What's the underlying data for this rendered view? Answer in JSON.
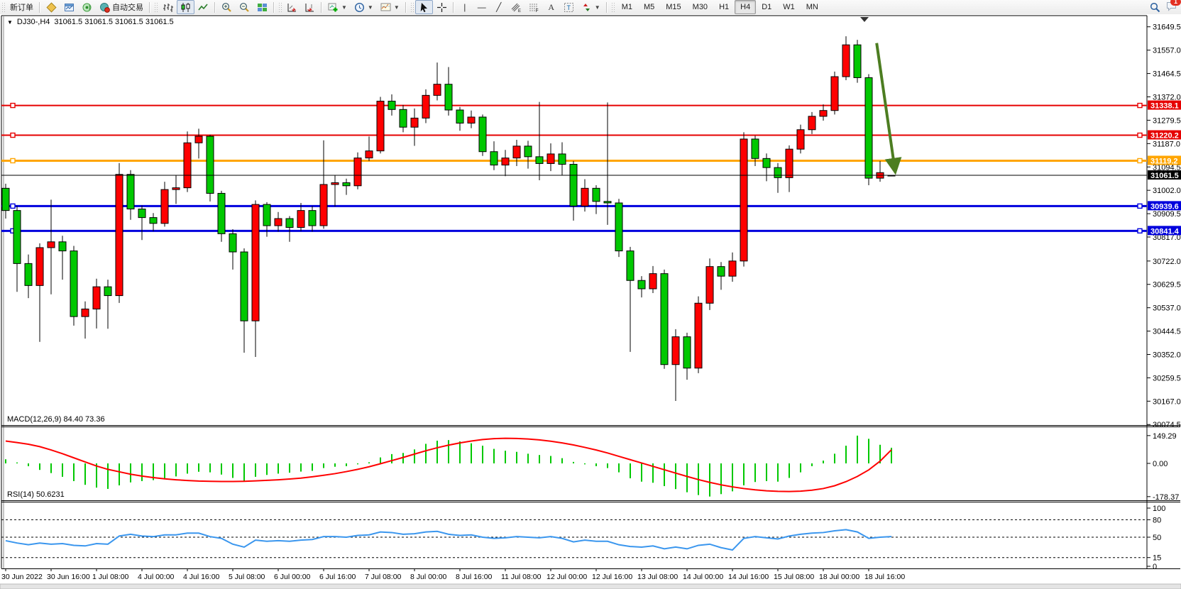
{
  "toolbar": {
    "new_order_label": "新订单",
    "auto_trading_label": "自动交易",
    "timeframes": [
      "M1",
      "M5",
      "M15",
      "M30",
      "H1",
      "H4",
      "D1",
      "W1",
      "MN"
    ],
    "active_timeframe": "H4",
    "notification_count": "1",
    "icons": [
      "charts-stack-icon",
      "chart-window-icon",
      "signal-icon",
      "autotrade-icon",
      "bar-chart-icon",
      "candlestick-icon",
      "line-chart-icon",
      "zoom-in-icon",
      "zoom-out-icon",
      "tile-windows-icon",
      "scroll-to-end-icon",
      "chart-shift-icon",
      "add-indicator-icon",
      "period-clock-icon",
      "template-icon",
      "cursor-icon",
      "crosshair-icon",
      "vertical-line-icon",
      "horizontal-line-icon",
      "trendline-icon",
      "channel-icon",
      "fibonacci-icon",
      "text-icon",
      "label-icon",
      "arrow-shapes-icon",
      "search-icon",
      "chat-icon"
    ]
  },
  "chart_data": {
    "type": "candlestick",
    "info_symbol": "DJ30-,H4",
    "info_ohlc": "31061.5 31061.5 31061.5 31061.5",
    "expander": "▼",
    "price_axis_ticks": [
      31649.5,
      31557.0,
      31464.5,
      31372.0,
      31279.5,
      31187.0,
      31094.5,
      31002.0,
      30909.5,
      30817.0,
      30722.0,
      30629.5,
      30537.0,
      30444.5,
      30352.0,
      30259.5,
      30167.0,
      30074.5
    ],
    "time_labels": [
      "30 Jun 2022",
      "30 Jun 16:00",
      "1 Jul 08:00",
      "4 Jul 00:00",
      "4 Jul 16:00",
      "5 Jul 08:00",
      "6 Jul 00:00",
      "6 Jul 16:00",
      "7 Jul 08:00",
      "8 Jul 00:00",
      "8 Jul 16:00",
      "11 Jul 08:00",
      "12 Jul 00:00",
      "12 Jul 16:00",
      "13 Jul 08:00",
      "14 Jul 00:00",
      "14 Jul 16:00",
      "15 Jul 08:00",
      "18 Jul 00:00",
      "18 Jul 16:00"
    ],
    "candles": [
      [
        31010,
        31028,
        30890,
        30922
      ],
      [
        30922,
        30940,
        30600,
        30712
      ],
      [
        30712,
        30748,
        30575,
        30625
      ],
      [
        30625,
        30792,
        30402,
        30775
      ],
      [
        30775,
        30965,
        30590,
        30798
      ],
      [
        30798,
        30822,
        30648,
        30762
      ],
      [
        30762,
        30782,
        30466,
        30502
      ],
      [
        30502,
        30562,
        30415,
        30532
      ],
      [
        30532,
        30652,
        30455,
        30620
      ],
      [
        30620,
        30648,
        30454,
        30585
      ],
      [
        30585,
        31110,
        30556,
        31065
      ],
      [
        31065,
        31082,
        30885,
        30928
      ],
      [
        30928,
        30942,
        30805,
        30894
      ],
      [
        30894,
        30912,
        30840,
        30871
      ],
      [
        30871,
        31036,
        30858,
        31005
      ],
      [
        31005,
        31062,
        30948,
        31012
      ],
      [
        31012,
        31235,
        30995,
        31190
      ],
      [
        31190,
        31246,
        31128,
        31216
      ],
      [
        31216,
        31222,
        30958,
        30990
      ],
      [
        30990,
        31000,
        30798,
        30830
      ],
      [
        30830,
        30848,
        30688,
        30758
      ],
      [
        30758,
        30772,
        30359,
        30485
      ],
      [
        30485,
        30962,
        30342,
        30946
      ],
      [
        30946,
        30955,
        30818,
        30862
      ],
      [
        30862,
        30916,
        30838,
        30890
      ],
      [
        30890,
        30900,
        30798,
        30855
      ],
      [
        30855,
        30952,
        30840,
        30922
      ],
      [
        30922,
        30940,
        30838,
        30862
      ],
      [
        30862,
        31200,
        30850,
        31025
      ],
      [
        31025,
        31062,
        30938,
        31032
      ],
      [
        31032,
        31048,
        30984,
        31020
      ],
      [
        31020,
        31152,
        31006,
        31130
      ],
      [
        31130,
        31215,
        31118,
        31158
      ],
      [
        31158,
        31372,
        31148,
        31355
      ],
      [
        31355,
        31382,
        31298,
        31322
      ],
      [
        31322,
        31340,
        31232,
        31252
      ],
      [
        31252,
        31326,
        31178,
        31288
      ],
      [
        31288,
        31402,
        31268,
        31378
      ],
      [
        31378,
        31508,
        31358,
        31422
      ],
      [
        31422,
        31490,
        31298,
        31320
      ],
      [
        31320,
        31332,
        31238,
        31268
      ],
      [
        31268,
        31318,
        31248,
        31292
      ],
      [
        31292,
        31302,
        31138,
        31155
      ],
      [
        31155,
        31196,
        31082,
        31102
      ],
      [
        31102,
        31162,
        31058,
        31130
      ],
      [
        31130,
        31202,
        31098,
        31177
      ],
      [
        31177,
        31198,
        31088,
        31135
      ],
      [
        31135,
        31352,
        31042,
        31108
      ],
      [
        31108,
        31188,
        31078,
        31146
      ],
      [
        31146,
        31192,
        31062,
        31105
      ],
      [
        31105,
        31118,
        30882,
        30940
      ],
      [
        30940,
        31046,
        30918,
        31010
      ],
      [
        31010,
        31022,
        30908,
        30958
      ],
      [
        30958,
        31350,
        30865,
        30952
      ],
      [
        30952,
        30968,
        30738,
        30762
      ],
      [
        30762,
        30778,
        30362,
        30645
      ],
      [
        30645,
        30662,
        30578,
        30612
      ],
      [
        30612,
        30702,
        30595,
        30672
      ],
      [
        30672,
        30688,
        30295,
        30312
      ],
      [
        30312,
        30452,
        30168,
        30422
      ],
      [
        30422,
        30438,
        30252,
        30298
      ],
      [
        30298,
        30582,
        30278,
        30555
      ],
      [
        30555,
        30732,
        30528,
        30700
      ],
      [
        30700,
        30718,
        30608,
        30662
      ],
      [
        30662,
        30756,
        30640,
        30722
      ],
      [
        30722,
        31232,
        30700,
        31205
      ],
      [
        31205,
        31218,
        31098,
        31128
      ],
      [
        31128,
        31148,
        31038,
        31092
      ],
      [
        31092,
        31110,
        30992,
        31052
      ],
      [
        31052,
        31180,
        30995,
        31165
      ],
      [
        31165,
        31262,
        31148,
        31242
      ],
      [
        31242,
        31312,
        31225,
        31295
      ],
      [
        31295,
        31342,
        31278,
        31318
      ],
      [
        31318,
        31472,
        31302,
        31452
      ],
      [
        31452,
        31612,
        31438,
        31578
      ],
      [
        31578,
        31598,
        31428,
        31448
      ],
      [
        31448,
        31462,
        31022,
        31050
      ],
      [
        31050,
        31118,
        31036,
        31072
      ],
      [
        31061.5,
        31061.5,
        31061.5,
        31061.5
      ]
    ],
    "hlines": [
      {
        "price": 31338.1,
        "label": "31338.1",
        "color": "#e60000",
        "width": 2
      },
      {
        "price": 31220.2,
        "label": "31220.2",
        "color": "#e60000",
        "width": 2
      },
      {
        "price": 31119.2,
        "label": "31119.2",
        "color": "#ffa500",
        "width": 3
      },
      {
        "price": 30939.6,
        "label": "30939.6",
        "color": "#0000dd",
        "width": 3
      },
      {
        "price": 30841.4,
        "label": "30841.4",
        "color": "#0000dd",
        "width": 3
      }
    ],
    "current_price": {
      "price": 31061.5,
      "label": "31061.5",
      "color": "#000000"
    },
    "trend_arrow": {
      "from_index": 76.7,
      "from_price": 31585,
      "to_index": 78.3,
      "to_price": 31085,
      "color": "#4c7d21"
    },
    "macd": {
      "label": "MACD(12,26,9) 84.40 73.36",
      "axis_ticks": [
        149.29,
        0.0,
        -178.37
      ],
      "hist_color": "#00c800",
      "signal_color": "#ff0000",
      "histogram": [
        22,
        5,
        -15,
        -35,
        -52,
        -72,
        -95,
        -115,
        -130,
        -137,
        -118,
        -102,
        -95,
        -90,
        -80,
        -70,
        -55,
        -45,
        -48,
        -60,
        -78,
        -98,
        -72,
        -62,
        -55,
        -50,
        -44,
        -40,
        -25,
        -18,
        -15,
        -5,
        6,
        32,
        50,
        56,
        75,
        105,
        122,
        125,
        118,
        108,
        95,
        78,
        68,
        62,
        52,
        45,
        40,
        28,
        8,
        -5,
        -15,
        -25,
        -48,
        -80,
        -98,
        -104,
        -122,
        -138,
        -155,
        -170,
        -178,
        -165,
        -150,
        -118,
        -100,
        -95,
        -98,
        -78,
        -48,
        -15,
        15,
        52,
        95,
        149,
        132,
        100,
        84
      ],
      "signal": [
        120,
        112,
        103,
        90,
        72,
        52,
        30,
        8,
        -14,
        -32,
        -45,
        -58,
        -68,
        -76,
        -83,
        -88,
        -92,
        -95,
        -96,
        -97,
        -97,
        -96,
        -94,
        -91,
        -88,
        -84,
        -79,
        -72,
        -64,
        -55,
        -44,
        -32,
        -18,
        -2,
        15,
        32,
        50,
        68,
        84,
        98,
        110,
        120,
        128,
        133,
        135,
        134,
        131,
        126,
        119,
        110,
        99,
        86,
        72,
        56,
        38,
        20,
        2,
        -16,
        -34,
        -52,
        -70,
        -87,
        -102,
        -115,
        -126,
        -135,
        -142,
        -147,
        -150,
        -151,
        -149,
        -144,
        -135,
        -120,
        -98,
        -70,
        -35,
        12,
        73
      ]
    },
    "rsi": {
      "label": "RSI(14) 50.6231",
      "axis_ticks": [
        100,
        80,
        50,
        15,
        0
      ],
      "dashed_levels": [
        80,
        50,
        15
      ],
      "color": "#3a96ee",
      "values": [
        44,
        40,
        37,
        40,
        38,
        39,
        36,
        35,
        39,
        38,
        52,
        55,
        52,
        51,
        54,
        54,
        57,
        57,
        51,
        48,
        38,
        33,
        45,
        43,
        44,
        43,
        45,
        46,
        51,
        51,
        50,
        53,
        54,
        59,
        58,
        55,
        56,
        59,
        60,
        55,
        53,
        54,
        50,
        48,
        49,
        51,
        50,
        49,
        51,
        48,
        42,
        45,
        43,
        43,
        37,
        34,
        33,
        35,
        30,
        33,
        30,
        36,
        38,
        32,
        28,
        48,
        51,
        49,
        47,
        52,
        55,
        57,
        58,
        61,
        63,
        59,
        48,
        50,
        51
      ]
    },
    "colors": {
      "bull": "#ff0000",
      "bear": "#00c800",
      "background": "#ffffff",
      "frame": "#000000"
    }
  }
}
